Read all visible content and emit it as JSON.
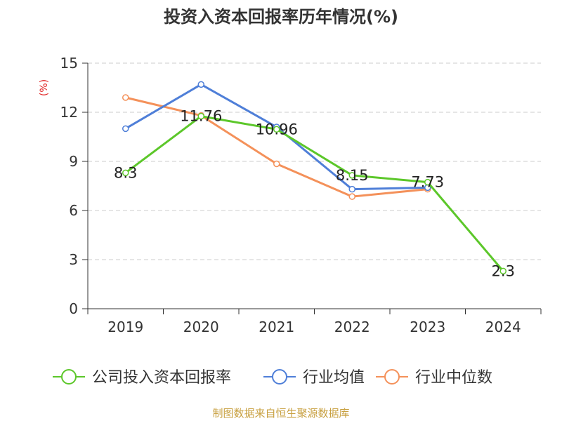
{
  "chart_data": {
    "type": "line",
    "title": "投资入资本回报率历年情况(%)",
    "ylabel": "(%)",
    "xlabel": "",
    "ylim": [
      0,
      15
    ],
    "yticks": [
      0,
      3,
      6,
      9,
      12,
      15
    ],
    "categories": [
      "2019",
      "2020",
      "2021",
      "2022",
      "2023",
      "2024"
    ],
    "grid": true,
    "legend_position": "bottom",
    "series": [
      {
        "name": "公司投入资本回报率",
        "color": "#5cc72a",
        "values": [
          8.3,
          11.76,
          10.96,
          8.15,
          7.73,
          2.3
        ],
        "show_labels": true
      },
      {
        "name": "行业均值",
        "color": "#4f7fd8",
        "values": [
          11.0,
          13.7,
          11.1,
          7.3,
          7.4,
          null
        ],
        "show_labels": false
      },
      {
        "name": "行业中位数",
        "color": "#f4915a",
        "values": [
          12.9,
          11.8,
          8.85,
          6.85,
          7.3,
          null
        ],
        "show_labels": false
      }
    ]
  },
  "watermark": "制图数据来自恒生聚源数据库"
}
